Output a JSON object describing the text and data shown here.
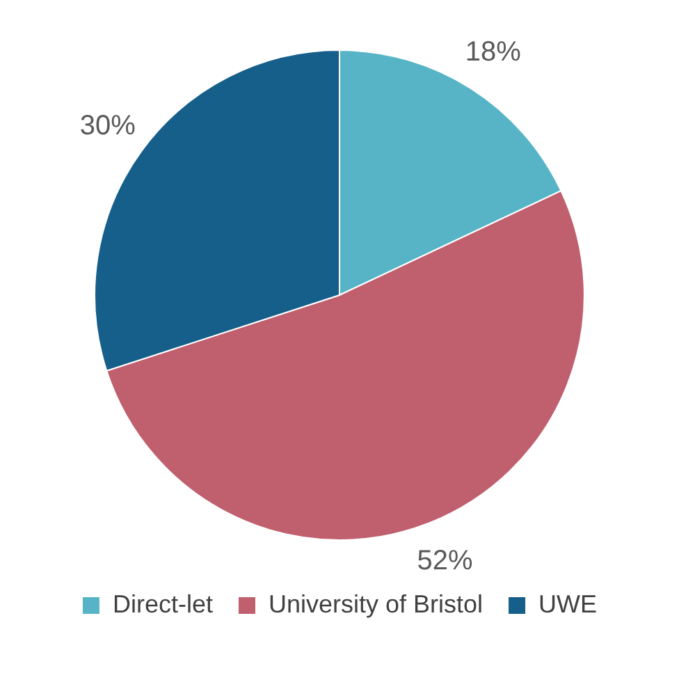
{
  "chart_data": {
    "type": "pie",
    "categories": [
      "Direct-let",
      "University of Bristol",
      "UWE"
    ],
    "values": [
      18,
      52,
      30
    ],
    "colors": [
      "#56b4c6",
      "#c05f6d",
      "#155f8a"
    ],
    "value_labels": [
      "18%",
      "52%",
      "30%"
    ],
    "data_labels": true,
    "legend": "bottom"
  }
}
